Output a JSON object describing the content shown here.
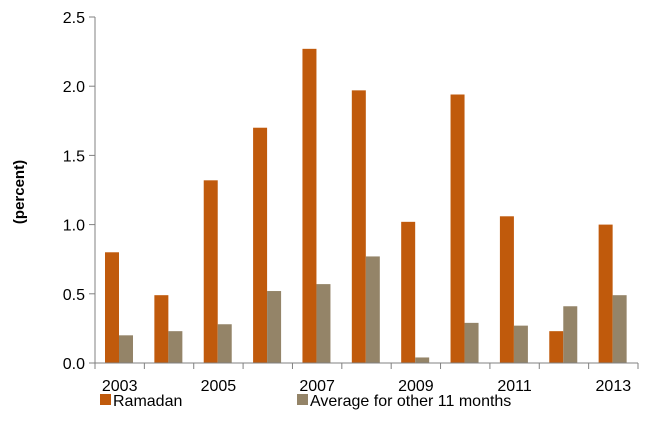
{
  "chart_data": {
    "type": "bar",
    "ylabel": "(percent)",
    "ylim": [
      0,
      2.5
    ],
    "yticks": [
      "0.0",
      "0.5",
      "1.0",
      "1.5",
      "2.0",
      "2.5"
    ],
    "ytick_values": [
      0,
      0.5,
      1.0,
      1.5,
      2.0,
      2.5
    ],
    "categories": [
      "2003",
      "2004",
      "2005",
      "2006",
      "2007",
      "2008",
      "2009",
      "2010",
      "2011",
      "2012",
      "2013"
    ],
    "xtick_labels": [
      "2003",
      "",
      "2005",
      "",
      "2007",
      "",
      "2009",
      "",
      "2011",
      "",
      "2013"
    ],
    "series": [
      {
        "name": "Ramadan",
        "color": "#c05a0c",
        "values": [
          0.8,
          0.49,
          1.32,
          1.7,
          2.27,
          1.97,
          1.02,
          1.94,
          1.06,
          0.23,
          1.0
        ]
      },
      {
        "name": "Average for other 11 months",
        "color": "#948468",
        "values": [
          0.2,
          0.23,
          0.28,
          0.52,
          0.57,
          0.77,
          0.04,
          0.29,
          0.27,
          0.41,
          0.49
        ]
      }
    ],
    "legend_position": "bottom"
  }
}
